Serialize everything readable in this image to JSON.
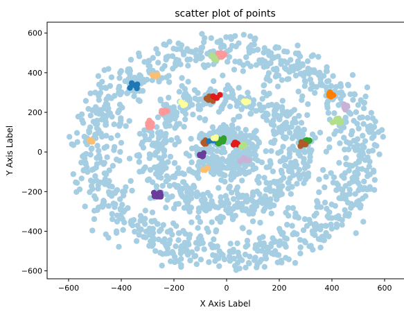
{
  "chart_data": {
    "type": "scatter",
    "title": "scatter plot of points",
    "xlabel": "X Axis Label",
    "ylabel": "Y Axis Label",
    "xlim": [
      -650,
      650
    ],
    "ylim": [
      -640,
      655
    ],
    "xticks": [
      -600,
      -400,
      -200,
      0,
      200,
      400,
      600
    ],
    "yticks": [
      -600,
      -400,
      -200,
      0,
      200,
      400,
      600
    ],
    "xtick_labels": [
      "−600",
      "−400",
      "−200",
      "0",
      "200",
      "400",
      "600"
    ],
    "ytick_labels": [
      "−600",
      "−400",
      "−200",
      "0",
      "200",
      "400",
      "600"
    ],
    "grid": false,
    "legend": "none",
    "background_color": "#a6cee3",
    "background_series": {
      "rings": [
        {
          "radius": 90,
          "count": 260,
          "spread": 28
        },
        {
          "radius": 275,
          "count": 560,
          "spread": 38
        },
        {
          "radius": 510,
          "count": 900,
          "spread": 50
        }
      ],
      "outliers": 160,
      "max_extent": 600
    },
    "clusters": [
      {
        "color": "#1f78b4",
        "x": -350,
        "y": 330,
        "n": 5
      },
      {
        "color": "#fdbf6f",
        "x": -275,
        "y": 385,
        "n": 6
      },
      {
        "color": "#fb9a99",
        "x": -290,
        "y": 140,
        "n": 10
      },
      {
        "color": "#fb9a99",
        "x": -240,
        "y": 200,
        "n": 7
      },
      {
        "color": "#ffff99",
        "x": -165,
        "y": 240,
        "n": 5
      },
      {
        "color": "#fdbf6f",
        "x": -510,
        "y": 60,
        "n": 5
      },
      {
        "color": "#6a3d9a",
        "x": -255,
        "y": -215,
        "n": 12
      },
      {
        "color": "#b2df8a",
        "x": -45,
        "y": 475,
        "n": 7
      },
      {
        "color": "#fb9a99",
        "x": -20,
        "y": 490,
        "n": 10
      },
      {
        "color": "#b15928",
        "x": -65,
        "y": 270,
        "n": 9
      },
      {
        "color": "#e31a1c",
        "x": -40,
        "y": 280,
        "n": 5
      },
      {
        "color": "#ffff99",
        "x": 75,
        "y": 255,
        "n": 4
      },
      {
        "color": "#ff7f00",
        "x": 395,
        "y": 290,
        "n": 12
      },
      {
        "color": "#cab2d6",
        "x": 450,
        "y": 230,
        "n": 9
      },
      {
        "color": "#b2df8a",
        "x": 420,
        "y": 160,
        "n": 12
      },
      {
        "color": "#33a02c",
        "x": 300,
        "y": 50,
        "n": 12
      },
      {
        "color": "#b15928",
        "x": 280,
        "y": 40,
        "n": 6
      },
      {
        "color": "#6a3d9a",
        "x": -95,
        "y": -15,
        "n": 8
      },
      {
        "color": "#b15928",
        "x": -85,
        "y": 45,
        "n": 6
      },
      {
        "color": "#1f78b4",
        "x": -55,
        "y": 55,
        "n": 3
      },
      {
        "color": "#33a02c",
        "x": -20,
        "y": 55,
        "n": 6
      },
      {
        "color": "#ffff99",
        "x": -50,
        "y": 75,
        "n": 3
      },
      {
        "color": "#e31a1c",
        "x": 30,
        "y": 35,
        "n": 5
      },
      {
        "color": "#b2df8a",
        "x": 65,
        "y": 30,
        "n": 6
      },
      {
        "color": "#cab2d6",
        "x": 65,
        "y": -40,
        "n": 7
      },
      {
        "color": "#fdbf6f",
        "x": -85,
        "y": -85,
        "n": 3
      }
    ]
  }
}
